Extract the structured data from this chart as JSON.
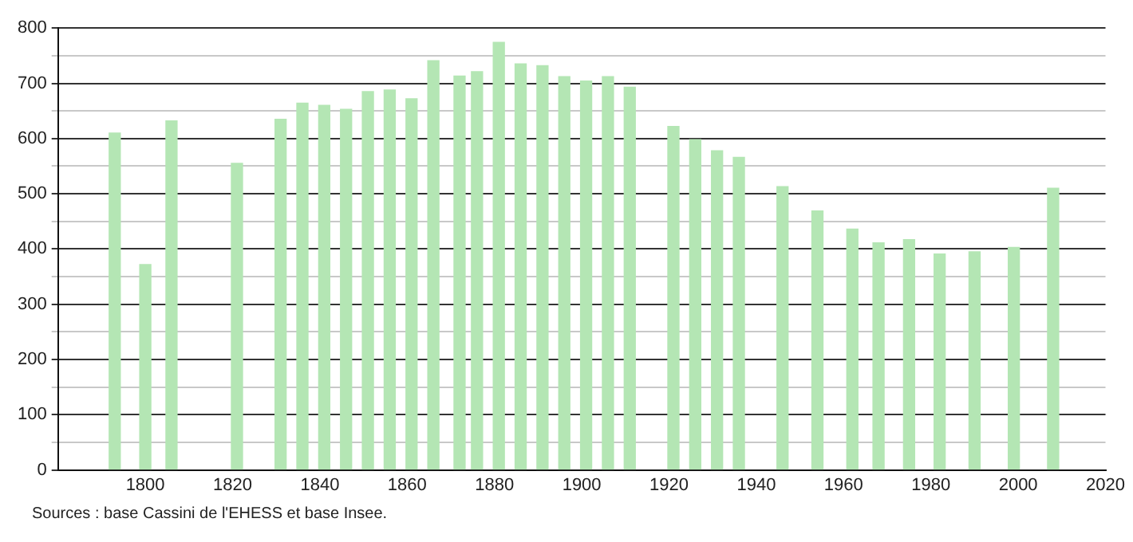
{
  "chart_data": {
    "type": "bar",
    "x": [
      1793,
      1800,
      1806,
      1821,
      1831,
      1836,
      1841,
      1846,
      1851,
      1856,
      1861,
      1866,
      1872,
      1876,
      1881,
      1886,
      1891,
      1896,
      1901,
      1906,
      1911,
      1921,
      1926,
      1931,
      1936,
      1946,
      1954,
      1962,
      1968,
      1975,
      1982,
      1990,
      1999,
      2008
    ],
    "values": [
      610,
      372,
      632,
      555,
      635,
      664,
      660,
      653,
      685,
      688,
      672,
      741,
      713,
      721,
      774,
      735,
      732,
      712,
      704,
      712,
      693,
      622,
      598,
      578,
      566,
      513,
      469,
      436,
      411,
      417,
      391,
      395,
      403,
      510
    ],
    "color": "#b4e6b4",
    "xlim": [
      1780,
      2020
    ],
    "xticks": [
      1800,
      1820,
      1840,
      1860,
      1880,
      1900,
      1920,
      1940,
      1960,
      1980,
      2000,
      2020
    ],
    "ylim": [
      0,
      800
    ],
    "yticks": [
      0,
      {
        "value": 50,
        "label": null
      },
      100,
      {
        "value": 150,
        "label": null
      },
      200,
      {
        "value": 250,
        "label": null
      },
      300,
      {
        "value": 350,
        "label": null
      },
      400,
      {
        "value": 450,
        "label": null
      },
      500,
      {
        "value": 550,
        "label": null
      },
      600,
      {
        "value": 650,
        "label": null
      },
      700,
      {
        "value": 750,
        "label": null
      },
      800
    ],
    "grid": "y",
    "annotations": [
      "Sources : base Cassini de l'EHESS et base Insee."
    ]
  }
}
